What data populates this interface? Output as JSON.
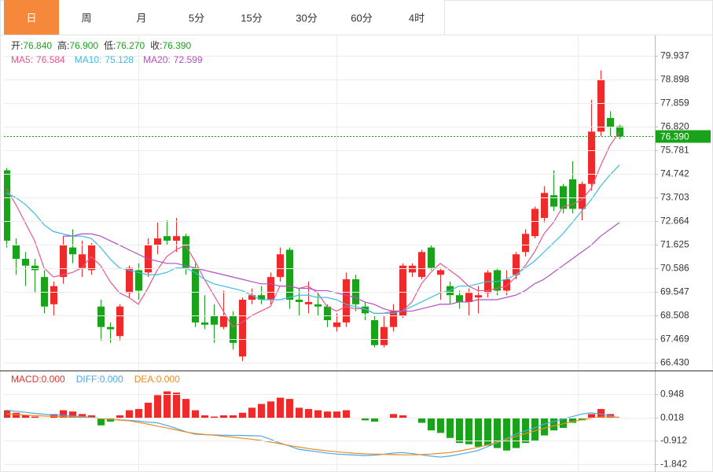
{
  "tabs": [
    "日",
    "周",
    "月",
    "5分",
    "15分",
    "30分",
    "60分",
    "4时"
  ],
  "active_tab": 0,
  "chart_data": [
    {
      "type": "candlestick",
      "info": [
        {
          "name": "开:",
          "label": "76.840"
        },
        {
          "name": "高:",
          "label": "76.900"
        },
        {
          "name": "低:",
          "label": "76.270"
        },
        {
          "name": "收:",
          "label": "76.390"
        }
      ],
      "info_color": "#1aa31a",
      "open": [
        74.9,
        71.6,
        71.0,
        70.7,
        70.2,
        69.0,
        70.2,
        71.5,
        70.6,
        70.5,
        68.9,
        68.0,
        67.6,
        69.5,
        70.5,
        70.4,
        71.6,
        72.0,
        71.8,
        72.0,
        70.6,
        68.2,
        68.5,
        68.0,
        68.5,
        66.7,
        69.2,
        69.4,
        69.2,
        70.2,
        71.4,
        69.2,
        69.0,
        69.0,
        68.9,
        68.0,
        68.2,
        70.1,
        68.9,
        68.3,
        67.2,
        68.0,
        68.5,
        70.4,
        70.2,
        71.5,
        70.3,
        69.8,
        69.4,
        69.1,
        69.3,
        69.5,
        70.5,
        69.6,
        70.3,
        71.3,
        72.0,
        72.8,
        73.8,
        74.2,
        74.5,
        73.2,
        74.3,
        76.6,
        77.2,
        76.84
      ],
      "high": [
        75.0,
        71.9,
        71.3,
        71.0,
        70.5,
        70.0,
        72.0,
        72.3,
        71.8,
        71.7,
        69.2,
        68.2,
        69.0,
        70.7,
        70.8,
        71.9,
        72.6,
        72.7,
        72.8,
        72.1,
        70.8,
        69.4,
        69.0,
        69.6,
        68.7,
        69.3,
        69.7,
        69.8,
        70.4,
        71.5,
        71.5,
        69.7,
        70.0,
        69.5,
        69.0,
        68.6,
        70.4,
        70.3,
        69.1,
        68.5,
        68.5,
        69.0,
        70.8,
        70.8,
        71.4,
        71.6,
        70.6,
        70.0,
        69.6,
        69.7,
        69.8,
        70.5,
        70.6,
        70.5,
        71.3,
        72.3,
        73.3,
        74.2,
        74.9,
        74.3,
        75.3,
        74.4,
        78.0,
        79.3,
        77.5,
        76.9
      ],
      "low": [
        71.5,
        70.3,
        69.8,
        69.5,
        68.6,
        68.5,
        69.9,
        70.8,
        70.2,
        70.3,
        67.4,
        67.3,
        67.4,
        69.3,
        69.2,
        70.2,
        71.2,
        71.6,
        71.3,
        70.3,
        68.0,
        67.9,
        67.3,
        67.9,
        67.0,
        66.5,
        69.0,
        69.0,
        69.0,
        70.0,
        68.8,
        68.5,
        68.6,
        68.5,
        68.0,
        67.8,
        68.0,
        68.7,
        68.3,
        67.1,
        67.1,
        67.8,
        68.4,
        70.2,
        70.1,
        70.5,
        69.2,
        69.0,
        68.8,
        68.5,
        68.6,
        69.3,
        69.4,
        69.4,
        70.1,
        71.1,
        71.9,
        72.6,
        73.1,
        73.0,
        73.0,
        72.7,
        74.0,
        76.4,
        76.4,
        76.27
      ],
      "close": [
        71.8,
        71.0,
        70.7,
        70.5,
        68.9,
        69.8,
        71.6,
        71.2,
        71.2,
        71.6,
        68.0,
        67.9,
        68.9,
        70.6,
        69.6,
        71.6,
        71.9,
        71.8,
        72.0,
        70.6,
        68.2,
        68.1,
        68.1,
        68.5,
        67.3,
        69.2,
        69.4,
        69.2,
        70.2,
        71.2,
        69.2,
        69.1,
        69.1,
        68.9,
        68.3,
        68.2,
        70.1,
        69.0,
        68.6,
        67.2,
        68.0,
        68.7,
        70.7,
        70.7,
        71.3,
        70.6,
        70.5,
        69.4,
        69.1,
        69.5,
        69.4,
        70.4,
        69.6,
        70.1,
        71.2,
        72.1,
        73.2,
        73.9,
        73.3,
        73.2,
        73.2,
        74.3,
        76.6,
        78.9,
        76.8,
        76.39
      ],
      "up_color": "#ee2a2a",
      "down_color": "#1aa31a",
      "series": [
        {
          "name": "MA5:",
          "color": "#e8558f",
          "values": [
            74.1,
            73.4,
            72.6,
            71.8,
            70.6,
            70.2,
            70.3,
            70.4,
            70.6,
            71.1,
            70.7,
            70.0,
            69.5,
            69.3,
            69.0,
            69.7,
            70.5,
            71.1,
            71.4,
            71.6,
            70.9,
            70.1,
            69.4,
            68.7,
            68.0,
            68.2,
            68.5,
            68.7,
            68.9,
            69.8,
            69.8,
            69.7,
            69.8,
            69.5,
            68.9,
            68.7,
            68.9,
            68.8,
            68.8,
            68.6,
            68.6,
            68.7,
            68.7,
            69.1,
            69.9,
            70.4,
            70.8,
            70.5,
            70.2,
            69.8,
            69.6,
            69.6,
            69.7,
            69.8,
            70.2,
            70.7,
            71.3,
            72.1,
            72.6,
            73.3,
            73.4,
            73.6,
            74.1,
            75.1,
            76.0,
            76.584
          ]
        },
        {
          "name": "MA10:",
          "color": "#3cbde0",
          "values": [
            73.9,
            73.7,
            73.4,
            73.0,
            72.5,
            72.2,
            72.1,
            72.0,
            72.0,
            71.9,
            71.5,
            71.0,
            70.6,
            70.5,
            70.4,
            70.3,
            70.3,
            70.4,
            70.6,
            70.6,
            70.4,
            70.1,
            69.9,
            69.8,
            69.7,
            69.6,
            69.4,
            69.2,
            69.2,
            69.2,
            69.3,
            69.4,
            69.4,
            69.3,
            69.3,
            69.2,
            69.0,
            68.9,
            68.8,
            68.6,
            68.6,
            68.6,
            68.7,
            68.9,
            69.1,
            69.3,
            69.5,
            69.6,
            69.8,
            69.8,
            69.9,
            70.0,
            70.0,
            70.1,
            70.3,
            70.6,
            70.9,
            71.3,
            71.7,
            72.1,
            72.6,
            73.1,
            73.6,
            74.2,
            74.7,
            75.128
          ]
        },
        {
          "name": "MA20:",
          "color": "#b44fc5",
          "values": [
            null,
            null,
            null,
            null,
            null,
            null,
            72.0,
            72.0,
            72.1,
            72.1,
            72.0,
            71.8,
            71.6,
            71.4,
            71.2,
            71.0,
            70.9,
            70.8,
            70.8,
            70.7,
            70.6,
            70.5,
            70.4,
            70.3,
            70.2,
            70.1,
            70.0,
            69.9,
            69.9,
            69.8,
            69.8,
            69.7,
            69.7,
            69.6,
            69.6,
            69.5,
            69.4,
            69.3,
            69.1,
            69.0,
            68.8,
            68.7,
            68.7,
            68.7,
            68.8,
            68.9,
            69.0,
            69.0,
            69.1,
            69.1,
            69.2,
            69.2,
            69.2,
            69.3,
            69.4,
            69.6,
            69.9,
            70.1,
            70.4,
            70.7,
            71.0,
            71.3,
            71.6,
            72.0,
            72.3,
            72.599
          ]
        }
      ],
      "ylim": [
        66.118,
        80.837
      ],
      "yticks": [
        79.937,
        78.898,
        77.859,
        {
          "value": 76.82,
          "label": "76.820"
        },
        75.781,
        74.742,
        73.703,
        72.664,
        71.625,
        70.586,
        69.547,
        68.508,
        67.469,
        {
          "value": 66.43,
          "label": "66.430"
        }
      ],
      "grid": true,
      "last_price": {
        "value": 76.39,
        "label": "76.390"
      },
      "last_price_color": "#1aa31a"
    },
    {
      "type": "macd",
      "series": [
        {
          "name": "MACD:",
          "legend_label": "0.000",
          "type": "bar",
          "color": "#e8312f",
          "up_color": "#ee2a2a",
          "down_color": "#1aa31a",
          "values": [
            0.3,
            0.2,
            0.1,
            0.05,
            0.0,
            0.15,
            0.3,
            0.25,
            0.15,
            0.1,
            -0.3,
            -0.15,
            0.1,
            0.3,
            0.35,
            0.6,
            0.9,
            1.05,
            1.0,
            0.75,
            0.3,
            0.1,
            0.05,
            0.1,
            0.1,
            0.2,
            0.4,
            0.55,
            0.65,
            0.8,
            0.75,
            0.4,
            0.35,
            0.3,
            0.25,
            0.25,
            0.3,
            0.0,
            -0.1,
            -0.15,
            0.0,
            0.15,
            0.1,
            0.0,
            -0.2,
            -0.5,
            -0.6,
            -0.8,
            -1.0,
            -1.05,
            -1.15,
            -1.1,
            -1.2,
            -1.3,
            -1.2,
            -1.0,
            -0.9,
            -0.7,
            -0.5,
            -0.4,
            -0.2,
            -0.1,
            0.15,
            0.35,
            0.15,
            0.0
          ]
        },
        {
          "name": "DIFF:",
          "legend_label": "0.000",
          "type": "line",
          "color": "#4aa8e8",
          "values": [
            0.3,
            0.26,
            0.22,
            0.18,
            0.14,
            0.12,
            0.1,
            0.07,
            0.05,
            0.02,
            -0.02,
            -0.06,
            -0.08,
            -0.1,
            -0.13,
            -0.17,
            -0.2,
            -0.3,
            -0.42,
            -0.55,
            -0.65,
            -0.67,
            -0.68,
            -0.69,
            -0.7,
            -0.7,
            -0.71,
            -0.72,
            -0.85,
            -1.0,
            -1.12,
            -1.25,
            -1.3,
            -1.35,
            -1.4,
            -1.44,
            -1.46,
            -1.48,
            -1.5,
            -1.48,
            -1.45,
            -1.4,
            -1.38,
            -1.42,
            -1.47,
            -1.52,
            -1.56,
            -1.52,
            -1.45,
            -1.38,
            -1.3,
            -1.15,
            -1.0,
            -0.82,
            -0.65,
            -0.52,
            -0.4,
            -0.25,
            -0.15,
            -0.05,
            0.05,
            0.15,
            0.2,
            0.15,
            0.08,
            0.0
          ]
        },
        {
          "name": "DEA:",
          "legend_label": "0.000",
          "type": "line",
          "color": "#f08a24",
          "values": [
            0.15,
            0.13,
            0.11,
            0.09,
            0.07,
            0.06,
            0.04,
            0.03,
            0.02,
            0.0,
            -0.03,
            -0.06,
            -0.09,
            -0.12,
            -0.18,
            -0.25,
            -0.33,
            -0.4,
            -0.48,
            -0.56,
            -0.62,
            -0.66,
            -0.69,
            -0.73,
            -0.77,
            -0.81,
            -0.85,
            -0.9,
            -0.96,
            -1.03,
            -1.1,
            -1.16,
            -1.22,
            -1.27,
            -1.31,
            -1.35,
            -1.38,
            -1.41,
            -1.43,
            -1.44,
            -1.45,
            -1.46,
            -1.47,
            -1.47,
            -1.46,
            -1.44,
            -1.41,
            -1.38,
            -1.32,
            -1.25,
            -1.17,
            -1.08,
            -0.97,
            -0.86,
            -0.74,
            -0.63,
            -0.52,
            -0.42,
            -0.32,
            -0.24,
            -0.15,
            -0.08,
            -0.02,
            0.03,
            0.04,
            0.02
          ]
        }
      ],
      "ylim": [
        -2.152,
        1.847
      ],
      "yticks": [
        0.948,
        0.018,
        -0.912,
        -1.842
      ],
      "grid": true
    }
  ]
}
